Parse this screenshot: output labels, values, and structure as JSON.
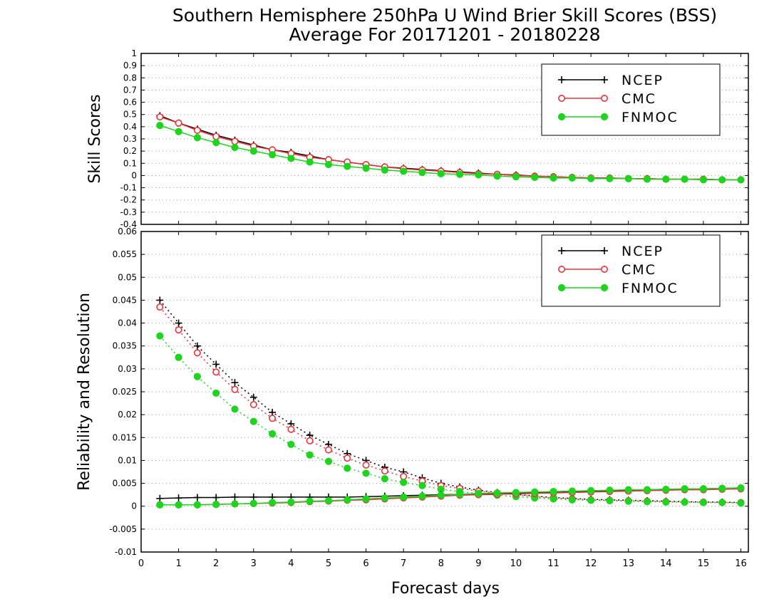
{
  "title_line1": "Southern Hemisphere 250hPa U Wind Brier Skill Scores (BSS)",
  "title_line2": "Average For 20171201 - 20180228",
  "colors": {
    "NCEP": "#000000",
    "CMC": "#e8333a",
    "FNMOC": "#1ed41e"
  },
  "chart_data": [
    {
      "type": "line",
      "ylabel": "Skill Scores",
      "xlabel": "",
      "xlim": [
        0,
        16.2
      ],
      "ylim": [
        -0.4,
        1
      ],
      "grid": true,
      "legend_placement": "top-right",
      "x_ticks": [
        0,
        1,
        2,
        3,
        4,
        5,
        6,
        7,
        8,
        9,
        10,
        11,
        12,
        13,
        14,
        15,
        16
      ],
      "y_ticks": [
        -0.4,
        -0.3,
        -0.2,
        -0.1,
        0,
        0.1,
        0.2,
        0.3,
        0.4,
        0.5,
        0.6,
        0.7,
        0.8,
        0.9,
        1
      ],
      "y_tick_labels": [
        "-0.4",
        "-0.3",
        "-0.2",
        "-0.1",
        "0",
        "0.1",
        "0.2",
        "0.3",
        "0.4",
        "0.5",
        "0.6",
        "0.7",
        "0.8",
        "0.9",
        "1"
      ],
      "x": [
        0.5,
        1,
        1.5,
        2,
        2.5,
        3,
        3.5,
        4,
        4.5,
        5,
        5.5,
        6,
        6.5,
        7,
        7.5,
        8,
        8.5,
        9,
        9.5,
        10,
        10.5,
        11,
        11.5,
        12,
        12.5,
        13,
        13.5,
        14,
        14.5,
        15,
        15.5,
        16
      ],
      "series": [
        {
          "name": "NCEP",
          "marker": "plus",
          "line": "solid",
          "values": [
            0.49,
            0.43,
            0.38,
            0.33,
            0.29,
            0.25,
            0.21,
            0.19,
            0.16,
            0.13,
            0.11,
            0.09,
            0.07,
            0.06,
            0.05,
            0.04,
            0.03,
            0.02,
            0.01,
            0.005,
            -0.005,
            -0.01,
            -0.015,
            -0.02,
            -0.02,
            -0.025,
            -0.025,
            -0.03,
            -0.03,
            -0.03,
            -0.035,
            -0.035
          ]
        },
        {
          "name": "CMC",
          "marker": "open-circle",
          "line": "solid",
          "values": [
            0.48,
            0.43,
            0.37,
            0.32,
            0.28,
            0.24,
            0.21,
            0.18,
            0.15,
            0.13,
            0.11,
            0.09,
            0.07,
            0.055,
            0.045,
            0.035,
            0.025,
            0.015,
            0.01,
            0.0,
            -0.005,
            -0.01,
            -0.015,
            -0.02,
            -0.02,
            -0.025,
            -0.025,
            -0.03,
            -0.03,
            -0.03,
            -0.035,
            -0.035
          ]
        },
        {
          "name": "FNMOC",
          "marker": "filled-circle",
          "line": "solid",
          "values": [
            0.41,
            0.36,
            0.31,
            0.27,
            0.23,
            0.2,
            0.17,
            0.14,
            0.11,
            0.09,
            0.075,
            0.06,
            0.045,
            0.035,
            0.025,
            0.015,
            0.01,
            0.005,
            -0.005,
            -0.01,
            -0.015,
            -0.02,
            -0.02,
            -0.025,
            -0.025,
            -0.025,
            -0.03,
            -0.03,
            -0.03,
            -0.035,
            -0.035,
            -0.035
          ]
        }
      ]
    },
    {
      "type": "line",
      "ylabel": "Reliability and Resolution",
      "xlabel": "Forecast days",
      "xlim": [
        0,
        16.2
      ],
      "ylim": [
        -0.01,
        0.06
      ],
      "grid": true,
      "legend_placement": "top-right",
      "x_ticks": [
        0,
        1,
        2,
        3,
        4,
        5,
        6,
        7,
        8,
        9,
        10,
        11,
        12,
        13,
        14,
        15,
        16
      ],
      "y_ticks": [
        -0.01,
        -0.005,
        0,
        0.005,
        0.01,
        0.015,
        0.02,
        0.025,
        0.03,
        0.035,
        0.04,
        0.045,
        0.05,
        0.055,
        0.06
      ],
      "y_tick_labels": [
        "-0.01",
        "-0.005",
        "0",
        "0.005",
        "0.01",
        "0.015",
        "0.02",
        "0.025",
        "0.03",
        "0.035",
        "0.04",
        "0.045",
        "0.05",
        "0.055",
        "0.06"
      ],
      "x": [
        0.5,
        1,
        1.5,
        2,
        2.5,
        3,
        3.5,
        4,
        4.5,
        5,
        5.5,
        6,
        6.5,
        7,
        7.5,
        8,
        8.5,
        9,
        9.5,
        10,
        10.5,
        11,
        11.5,
        12,
        12.5,
        13,
        13.5,
        14,
        14.5,
        15,
        15.5,
        16
      ],
      "series": [
        {
          "name": "NCEP",
          "marker": "plus",
          "line": "dotted",
          "values": [
            0.045,
            0.04,
            0.035,
            0.031,
            0.027,
            0.0238,
            0.0205,
            0.018,
            0.0155,
            0.0135,
            0.0115,
            0.01,
            0.0085,
            0.0075,
            0.0062,
            0.005,
            0.0042,
            0.0035,
            0.003,
            0.0026,
            0.0022,
            0.0019,
            0.0017,
            0.0015,
            0.0014,
            0.0013,
            0.0012,
            0.0011,
            0.001,
            0.0009,
            0.0009,
            0.0008
          ]
        },
        {
          "name": "CMC",
          "marker": "open-circle",
          "line": "dotted",
          "values": [
            0.0435,
            0.0385,
            0.0335,
            0.0293,
            0.0255,
            0.0222,
            0.0192,
            0.0168,
            0.0143,
            0.0123,
            0.0105,
            0.009,
            0.0077,
            0.0065,
            0.0055,
            0.0045,
            0.0039,
            0.0033,
            0.0029,
            0.0025,
            0.0021,
            0.0018,
            0.0016,
            0.0014,
            0.0013,
            0.0012,
            0.0011,
            0.001,
            0.0009,
            0.0009,
            0.0008,
            0.0008
          ]
        },
        {
          "name": "FNMOC",
          "marker": "filled-circle",
          "line": "dotted",
          "values": [
            0.0372,
            0.0325,
            0.0283,
            0.0247,
            0.0212,
            0.0185,
            0.0158,
            0.0135,
            0.0112,
            0.0098,
            0.0083,
            0.0072,
            0.006,
            0.0052,
            0.0045,
            0.0037,
            0.0032,
            0.0027,
            0.0024,
            0.0021,
            0.0018,
            0.0016,
            0.0014,
            0.0013,
            0.0012,
            0.0011,
            0.001,
            0.0009,
            0.0009,
            0.0008,
            0.0008,
            0.0007
          ]
        },
        {
          "name": "",
          "legend": false,
          "color_of": "NCEP",
          "marker": "plus",
          "line": "solid",
          "values": [
            0.0017,
            0.0018,
            0.0019,
            0.0019,
            0.002,
            0.002,
            0.002,
            0.002,
            0.002,
            0.002,
            0.002,
            0.0021,
            0.0022,
            0.0023,
            0.0024,
            0.0025,
            0.0026,
            0.0027,
            0.0028,
            0.0029,
            0.003,
            0.0031,
            0.0032,
            0.0033,
            0.0034,
            0.0035,
            0.0036,
            0.0037,
            0.0037,
            0.0038,
            0.0039,
            0.004
          ]
        },
        {
          "name": "",
          "legend": false,
          "color_of": "CMC",
          "marker": "open-circle",
          "line": "solid",
          "values": [
            0.0003,
            0.0003,
            0.0003,
            0.0004,
            0.0005,
            0.0006,
            0.0007,
            0.0008,
            0.001,
            0.0011,
            0.0013,
            0.0014,
            0.0016,
            0.0018,
            0.002,
            0.0022,
            0.0024,
            0.0025,
            0.0026,
            0.0027,
            0.0028,
            0.0029,
            0.003,
            0.0031,
            0.0032,
            0.0033,
            0.0034,
            0.0035,
            0.0036,
            0.0036,
            0.0037,
            0.0038
          ]
        },
        {
          "name": "",
          "legend": false,
          "color_of": "FNMOC",
          "marker": "filled-circle",
          "line": "solid",
          "values": [
            0.0003,
            0.0003,
            0.0003,
            0.0004,
            0.0005,
            0.0006,
            0.0008,
            0.0009,
            0.0011,
            0.0012,
            0.0014,
            0.0016,
            0.0018,
            0.002,
            0.0022,
            0.0024,
            0.0026,
            0.0028,
            0.0029,
            0.003,
            0.0031,
            0.0032,
            0.0033,
            0.0034,
            0.0035,
            0.0036,
            0.0036,
            0.0037,
            0.0038,
            0.0038,
            0.0039,
            0.004
          ]
        }
      ]
    }
  ],
  "legend_labels": [
    "NCEP",
    "CMC",
    "FNMOC"
  ]
}
